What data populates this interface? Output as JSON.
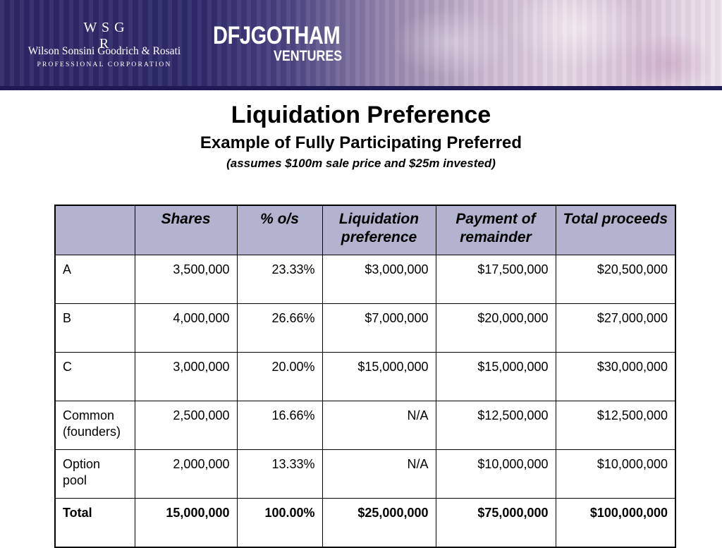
{
  "header": {
    "firm_mark": "W S G R",
    "firm_name": "Wilson Sonsini Goodrich & Rosati",
    "firm_subtitle": "PROFESSIONAL CORPORATION",
    "fund_name": "DFJGOTHAM",
    "fund_subtitle": "VENTURES"
  },
  "slide": {
    "title": "Liquidation Preference",
    "subtitle": "Example of Fully Participating Preferred",
    "note": "(assumes $100m sale price and $25m invested)"
  },
  "table": {
    "headers": [
      "",
      "Shares",
      "% o/s",
      "Liquidation preference",
      "Payment of remainder",
      "Total proceeds"
    ],
    "rows": [
      [
        "A",
        "3,500,000",
        "23.33%",
        "$3,000,000",
        "$17,500,000",
        "$20,500,000"
      ],
      [
        "B",
        "4,000,000",
        "26.66%",
        "$7,000,000",
        "$20,000,000",
        "$27,000,000"
      ],
      [
        "C",
        "3,000,000",
        "20.00%",
        "$15,000,000",
        "$15,000,000",
        "$30,000,000"
      ],
      [
        "Common (founders)",
        "2,500,000",
        "16.66%",
        "N/A",
        "$12,500,000",
        "$12,500,000"
      ],
      [
        "Option pool",
        "2,000,000",
        "13.33%",
        "N/A",
        "$10,000,000",
        "$10,000,000"
      ],
      [
        "Total",
        "15,000,000",
        "100.00%",
        "$25,000,000",
        "$75,000,000",
        "$100,000,000"
      ]
    ]
  },
  "colors": {
    "banner_dark": "#2b2766",
    "header_fill": "#b1b3cf"
  }
}
